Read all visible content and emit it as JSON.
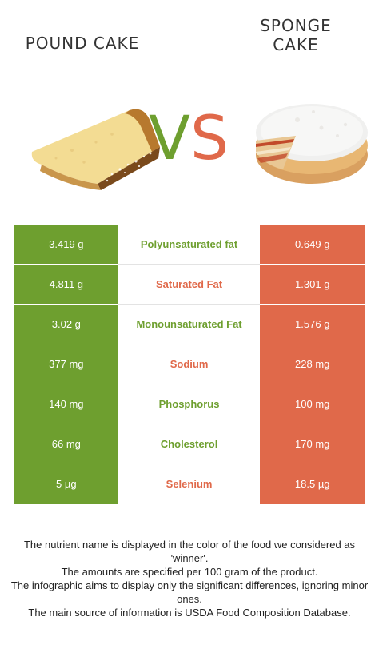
{
  "header": {
    "left_title": "POUND CAKE",
    "right_title": "SPONGE CAKE",
    "vs_v": "V",
    "vs_s": "S"
  },
  "colors": {
    "left_food": "#6e9f2f",
    "right_food": "#e0694a"
  },
  "rows": [
    {
      "nutrient": "Polyunsaturated fat",
      "left": "3.419 g",
      "right": "0.649 g",
      "winner": "left"
    },
    {
      "nutrient": "Saturated Fat",
      "left": "4.811 g",
      "right": "1.301 g",
      "winner": "right"
    },
    {
      "nutrient": "Monounsaturated Fat",
      "left": "3.02 g",
      "right": "1.576 g",
      "winner": "left"
    },
    {
      "nutrient": "Sodium",
      "left": "377 mg",
      "right": "228 mg",
      "winner": "right"
    },
    {
      "nutrient": "Phosphorus",
      "left": "140 mg",
      "right": "100 mg",
      "winner": "left"
    },
    {
      "nutrient": "Cholesterol",
      "left": "66 mg",
      "right": "170 mg",
      "winner": "left"
    },
    {
      "nutrient": "Selenium",
      "left": "5 µg",
      "right": "18.5 µg",
      "winner": "right"
    }
  ],
  "footnote": {
    "line1": "The nutrient name is displayed in the color of the food we considered as 'winner'.",
    "line2": "The amounts are specified per 100 gram of the product.",
    "line3": "The infographic aims to display only the significant differences, ignoring minor ones.",
    "line4": "The main source of information is USDA Food Composition Database."
  }
}
